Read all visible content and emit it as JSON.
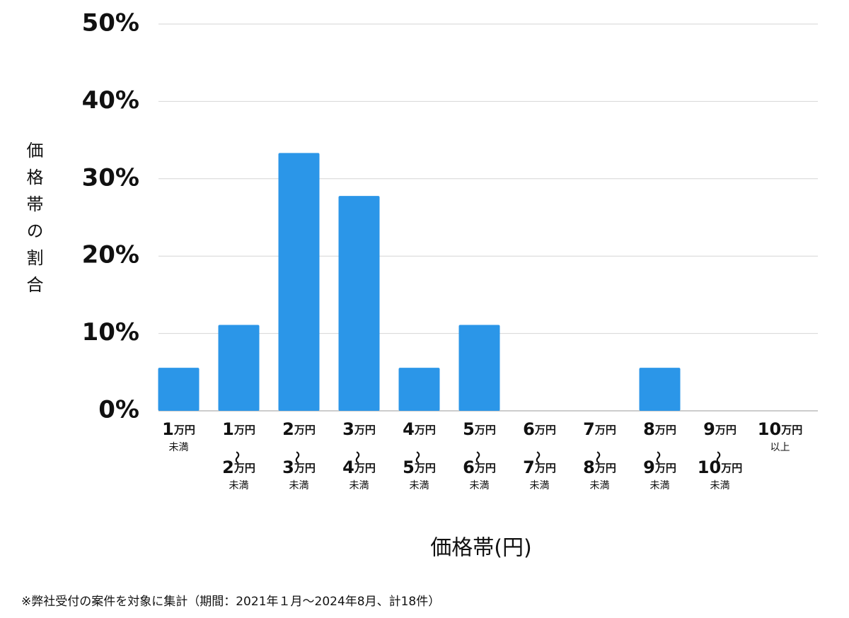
{
  "chart_data": {
    "type": "bar",
    "y_label": "価格帯の割合",
    "x_label": "価格帯(円)",
    "footnote": "※弊社受付の案件を対象に集計（期間：2021年１月～2024年8月、計18件）",
    "categories": [
      "1万円\n未満",
      "1万円\n〜\n2万円\n未満",
      "2万円\n〜\n3万円\n未満",
      "3万円\n〜\n4万円\n未満",
      "4万円\n〜\n5万円\n未満",
      "5万円\n〜\n6万円\n未満",
      "6万円\n〜\n7万円\n未満",
      "7万円\n〜\n8万円\n未満",
      "8万円\n〜\n9万円\n未満",
      "9万円\n〜\n10万円\n未満",
      "10万円\n以上"
    ],
    "values": [
      5.56,
      11.11,
      33.33,
      27.78,
      5.56,
      11.11,
      0,
      0,
      5.56,
      0,
      0
    ],
    "color": "#2b96e8",
    "ylim": [
      0,
      50
    ],
    "yticks": [
      {
        "value": 0,
        "label": "0%"
      },
      {
        "value": 10,
        "label": "10%"
      },
      {
        "value": 20,
        "label": "20%"
      },
      {
        "value": 30,
        "label": "30%"
      },
      {
        "value": 40,
        "label": "40%"
      },
      {
        "value": 50,
        "label": "50%"
      }
    ],
    "grid": true
  }
}
